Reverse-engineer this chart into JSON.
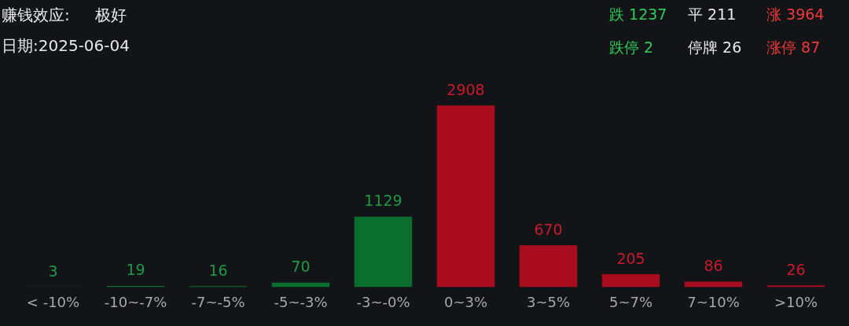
{
  "chart_data": {
    "type": "bar",
    "title": "赚钱效应:     极好",
    "subtitle": "日期:2025-06-04",
    "annotations": [
      "跌 1237",
      "平 211",
      "涨 3964",
      "跌停 2",
      "停牌 26",
      "涨停 87"
    ],
    "categories": [
      "< -10%",
      "-10~-7%",
      "-7~-5%",
      "-5~-3%",
      "-3~-0%",
      "0~3%",
      "3~5%",
      "5~7%",
      "7~10%",
      ">10%"
    ],
    "values": [
      3,
      19,
      16,
      70,
      1129,
      2908,
      670,
      205,
      86,
      26
    ],
    "colors": [
      "#0a6e2e",
      "#0a6e2e",
      "#0a6e2e",
      "#0a6e2e",
      "#0a6e2e",
      "#a80c1e",
      "#a80c1e",
      "#a80c1e",
      "#a80c1e",
      "#a80c1e"
    ],
    "data_labels": true
  }
}
